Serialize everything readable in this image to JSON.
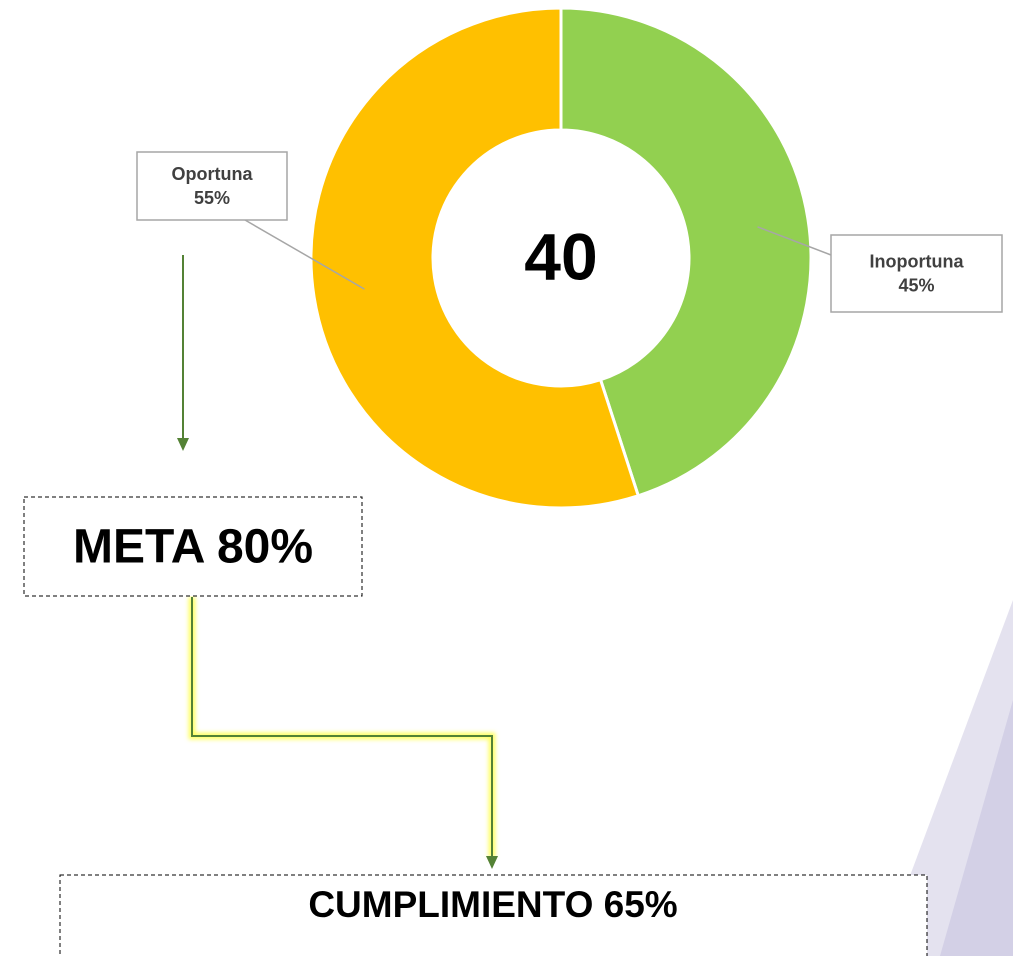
{
  "chart_data": {
    "type": "pie",
    "donut": true,
    "categories": [
      "Inoportuna",
      "Oportuna"
    ],
    "values": [
      45,
      55
    ],
    "value_labels": [
      "45%",
      "55%"
    ],
    "colors": [
      "#92D050",
      "#FFC000"
    ],
    "center_label": 40,
    "annotations": [
      "META 80%",
      "CUMPLIMIENTO 65%"
    ]
  }
}
